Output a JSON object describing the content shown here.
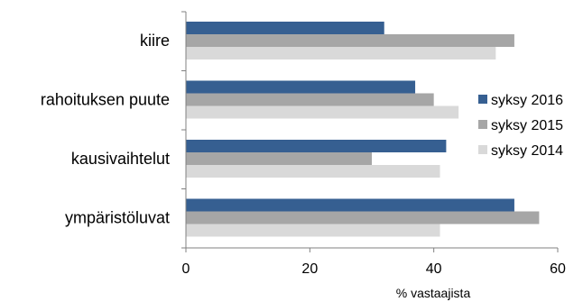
{
  "chart_data": {
    "type": "bar",
    "orientation": "horizontal",
    "categories": [
      "kiire",
      "rahoituksen puute",
      "kausivaihtelut",
      "ympäristöluvat"
    ],
    "series": [
      {
        "name": "syksy 2016",
        "color": "#365f91",
        "values": [
          32,
          37,
          42,
          53
        ]
      },
      {
        "name": "syksy 2015",
        "color": "#a6a6a6",
        "values": [
          53,
          40,
          30,
          57
        ]
      },
      {
        "name": "syksy 2014",
        "color": "#d9d9d9",
        "values": [
          50,
          44,
          41,
          41
        ]
      }
    ],
    "xlabel": "% vastaajista",
    "xlim": [
      0,
      60
    ],
    "xticks": [
      "0",
      "20",
      "40",
      "60"
    ],
    "grid": false,
    "legend_position": "right"
  }
}
